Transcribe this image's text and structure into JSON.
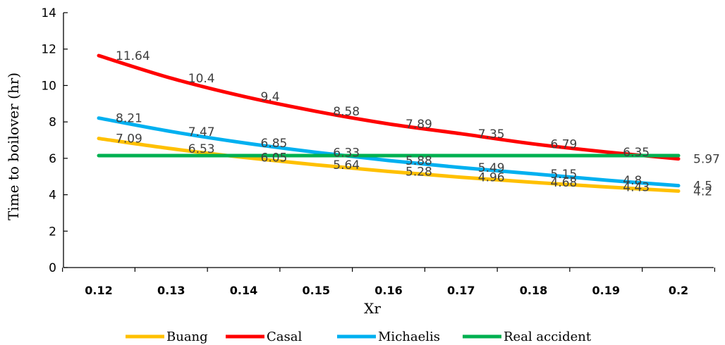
{
  "chart_data": {
    "type": "line",
    "xlabel": "Xr",
    "ylabel": "Time to boilover (hr)",
    "ylim": [
      0,
      14
    ],
    "yticks": [
      0,
      2,
      4,
      6,
      8,
      10,
      12,
      14
    ],
    "categories": [
      "0.12",
      "0.13",
      "0.14",
      "0.15",
      "0.16",
      "0.17",
      "0.18",
      "0.19",
      "0.2"
    ],
    "grid": false,
    "legend_position": "bottom",
    "series": [
      {
        "name": "Buang",
        "color": "#FFC000",
        "values": [
          7.09,
          6.53,
          6.05,
          5.64,
          5.28,
          4.96,
          4.68,
          4.43,
          4.2
        ]
      },
      {
        "name": "Casal",
        "color": "#FF0000",
        "values": [
          11.64,
          10.4,
          9.4,
          8.58,
          7.89,
          7.35,
          6.79,
          6.35,
          5.97
        ]
      },
      {
        "name": "Michaelis",
        "color": "#00B0F0",
        "values": [
          8.21,
          7.47,
          6.85,
          6.33,
          5.88,
          5.49,
          5.15,
          4.8,
          4.5
        ]
      },
      {
        "name": "Real accident",
        "color": "#00B050",
        "values": [
          6.15,
          6.15,
          6.15,
          6.15,
          6.15,
          6.15,
          6.15,
          6.15,
          6.15
        ],
        "show_labels": false
      }
    ]
  }
}
